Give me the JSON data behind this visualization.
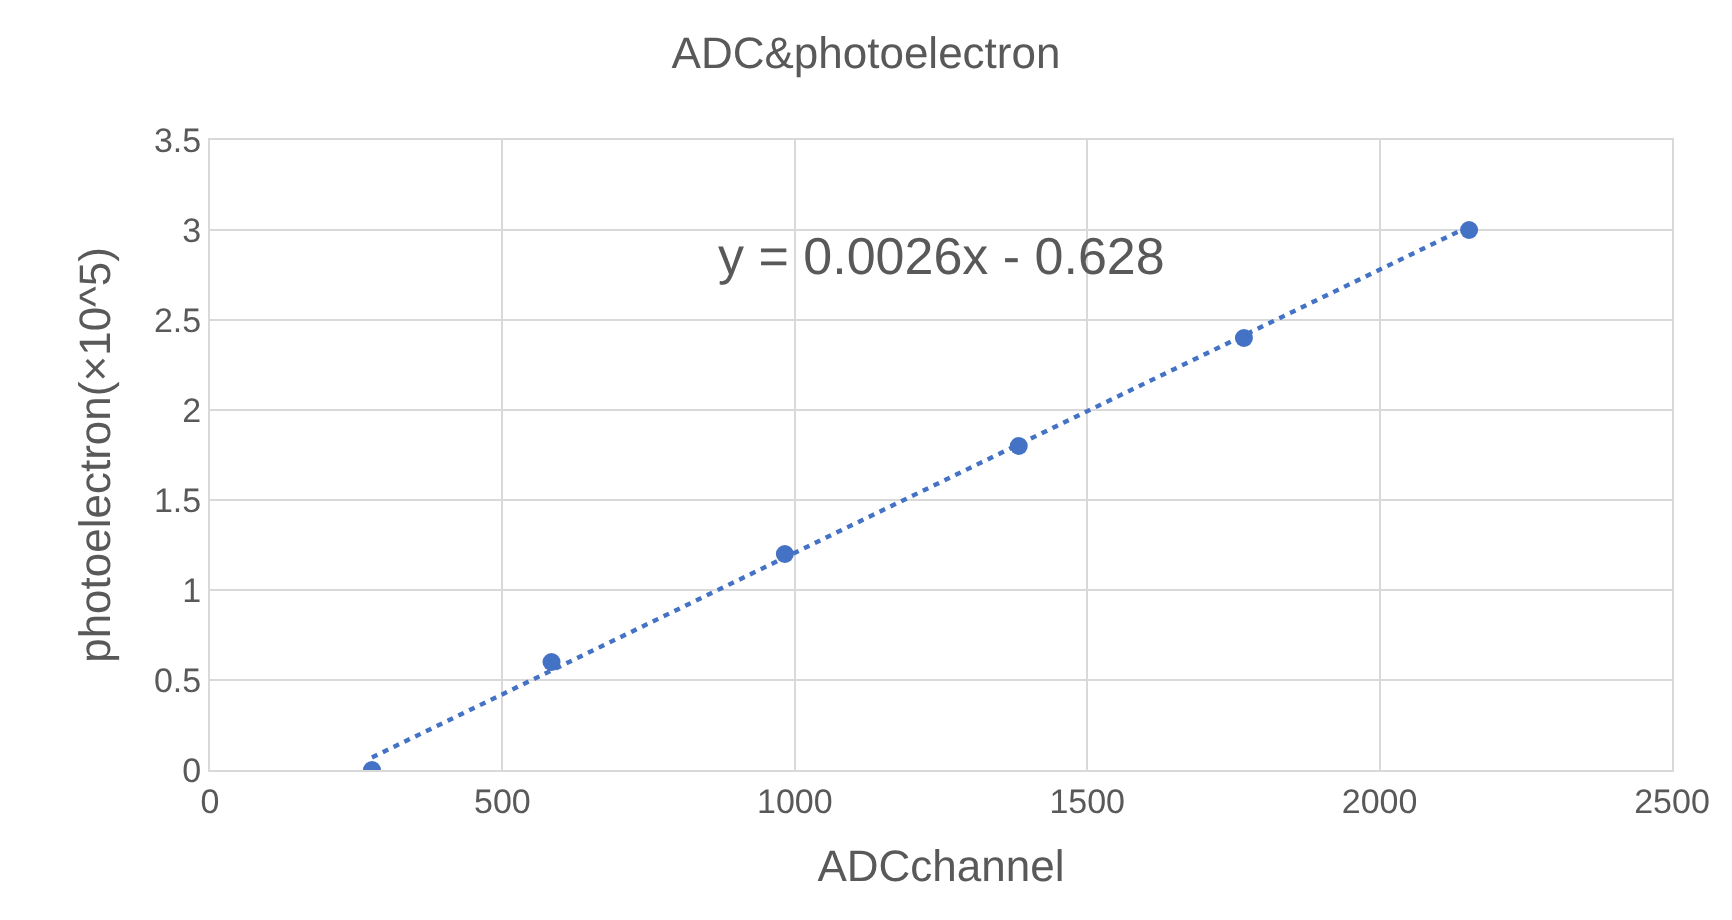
{
  "chart_data": {
    "type": "scatter",
    "title": "ADC&photoelectron",
    "xlabel": "ADCchannel",
    "ylabel": "photoelectron(×10^5)",
    "series": [
      {
        "color": "#4472c4",
        "marker": "circle",
        "x": [
          277,
          584,
          983,
          1383,
          1768,
          2153
        ],
        "values": [
          0,
          0.6,
          1.2,
          1.8,
          2.4,
          3.0
        ]
      },
      {
        "type": "line",
        "color": "#4472c4",
        "marker": "none",
        "line_style": "dotted",
        "x": [
          277,
          2153
        ],
        "values": [
          0.07,
          3.02
        ]
      }
    ],
    "annotations": [
      "y = 0.0026x - 0.628"
    ],
    "xlim": [
      0,
      2500
    ],
    "xticks": [
      0,
      500,
      1000,
      1500,
      2000,
      2500
    ],
    "ylim": [
      0,
      3.5
    ],
    "yticks": [
      0,
      0.5,
      1,
      1.5,
      2,
      2.5,
      3,
      3.5
    ],
    "grid": true
  }
}
